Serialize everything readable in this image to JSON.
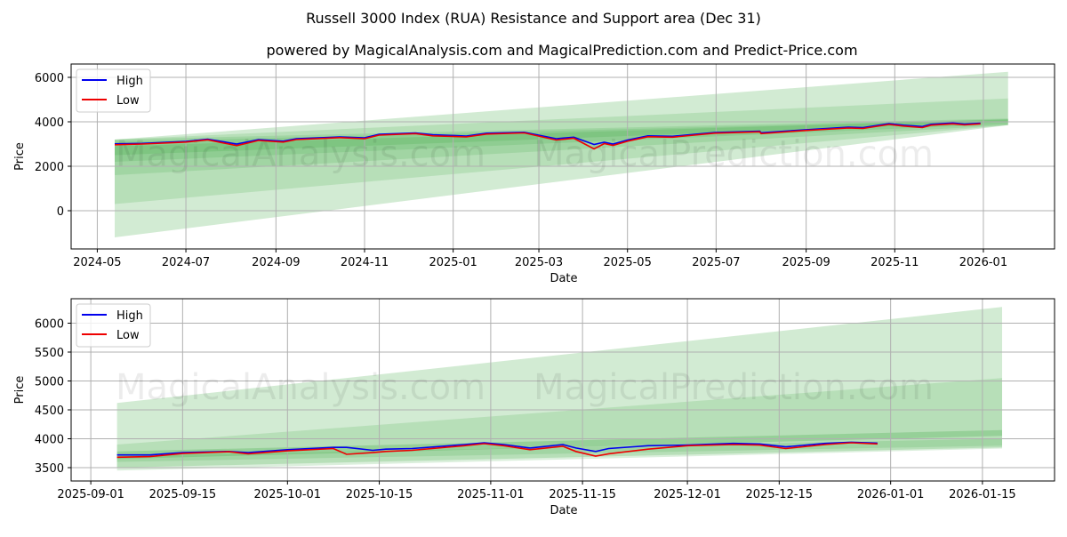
{
  "title": "Russell 3000 Index (RUA) Resistance and Support area (Dec 31)",
  "subtitle": "powered by MagicalAnalysis.com and MagicalPrediction.com and Predict-Price.com",
  "watermarks": [
    "MagicalAnalysis.com",
    "MagicalPrediction.com"
  ],
  "colors": {
    "high": "#0000ee",
    "low": "#ee0000",
    "band": "#4caf50",
    "grid": "#b0b0b0"
  },
  "chart_data": [
    {
      "type": "line",
      "title": "",
      "xlabel": "Date",
      "ylabel": "Price",
      "xlim": [
        "2024-04-13",
        "2026-02-19"
      ],
      "ylim": [
        -1720,
        6600
      ],
      "grid": true,
      "legend": {
        "placement": "top-left",
        "entries": [
          "High",
          "Low"
        ]
      },
      "xticks": [
        "2024-05",
        "2024-07",
        "2024-09",
        "2024-11",
        "2025-01",
        "2025-03",
        "2025-05",
        "2025-07",
        "2025-09",
        "2025-11",
        "2026-01"
      ],
      "yticks": [
        0,
        2000,
        4000,
        6000
      ],
      "bands": [
        {
          "x": [
            "2024-05-13",
            "2026-01-18"
          ],
          "start": [
            -1200,
            3200
          ],
          "end": [
            3850,
            6250
          ],
          "opacity": 0.25
        },
        {
          "x": [
            "2024-05-13",
            "2026-01-18"
          ],
          "start": [
            300,
            3200
          ],
          "end": [
            3850,
            5050
          ],
          "opacity": 0.2
        },
        {
          "x": [
            "2024-05-13",
            "2026-01-18"
          ],
          "start": [
            1600,
            3200
          ],
          "end": [
            3850,
            4150
          ],
          "opacity": 0.2
        },
        {
          "x": [
            "2024-05-13",
            "2026-01-18"
          ],
          "start": [
            2200,
            3100
          ],
          "end": [
            3900,
            4100
          ],
          "opacity": 0.2
        },
        {
          "x": [
            "2024-05-13",
            "2026-01-18"
          ],
          "start": [
            2500,
            2900
          ],
          "end": [
            4000,
            4120
          ],
          "opacity": 0.25
        }
      ],
      "x": [
        "2024-05-13",
        "2024-06-01",
        "2024-07-01",
        "2024-07-16",
        "2024-08-05",
        "2024-08-20",
        "2024-09-06",
        "2024-09-15",
        "2024-10-15",
        "2024-11-01",
        "2024-11-11",
        "2024-12-06",
        "2024-12-18",
        "2025-01-10",
        "2025-01-24",
        "2025-02-19",
        "2025-03-13",
        "2025-03-25",
        "2025-04-08",
        "2025-04-15",
        "2025-04-21",
        "2025-05-01",
        "2025-05-15",
        "2025-06-01",
        "2025-06-30",
        "2025-07-31",
        "2025-08-01",
        "2025-08-31",
        "2025-09-30",
        "2025-10-10",
        "2025-10-28",
        "2025-11-07",
        "2025-11-20",
        "2025-11-26",
        "2025-12-11",
        "2025-12-19",
        "2025-12-30"
      ],
      "series": [
        {
          "name": "High",
          "values": [
            3010,
            3030,
            3120,
            3220,
            3000,
            3200,
            3130,
            3240,
            3320,
            3280,
            3440,
            3500,
            3420,
            3360,
            3490,
            3530,
            3240,
            3310,
            2980,
            3080,
            3000,
            3180,
            3370,
            3350,
            3520,
            3580,
            3510,
            3640,
            3760,
            3740,
            3920,
            3850,
            3790,
            3890,
            3950,
            3900,
            3940
          ]
        },
        {
          "name": "Low",
          "values": [
            2970,
            3000,
            3090,
            3190,
            2930,
            3160,
            3090,
            3200,
            3290,
            3240,
            3400,
            3470,
            3370,
            3320,
            3450,
            3500,
            3180,
            3260,
            2780,
            3020,
            2940,
            3130,
            3330,
            3310,
            3490,
            3550,
            3470,
            3610,
            3720,
            3700,
            3880,
            3810,
            3740,
            3850,
            3910,
            3860,
            3910
          ]
        }
      ]
    },
    {
      "type": "line",
      "title": "",
      "xlabel": "Date",
      "ylabel": "Price",
      "xlim": [
        "2025-08-29",
        "2026-01-26"
      ],
      "ylim": [
        3269,
        6423
      ],
      "grid": true,
      "legend": {
        "placement": "top-left",
        "entries": [
          "High",
          "Low"
        ]
      },
      "xticks": [
        "2025-09-01",
        "2025-09-15",
        "2025-10-01",
        "2025-10-15",
        "2025-11-01",
        "2025-11-15",
        "2025-12-01",
        "2025-12-15",
        "2026-01-01",
        "2026-01-15"
      ],
      "yticks": [
        3500,
        4000,
        4500,
        5000,
        5500,
        6000
      ],
      "bands": [
        {
          "x": [
            "2025-09-05",
            "2026-01-18"
          ],
          "start": [
            3500,
            4620
          ],
          "end": [
            3850,
            6280
          ],
          "opacity": 0.25
        },
        {
          "x": [
            "2025-09-05",
            "2026-01-18"
          ],
          "start": [
            3600,
            3900
          ],
          "end": [
            3880,
            5050
          ],
          "opacity": 0.2
        },
        {
          "x": [
            "2025-09-05",
            "2026-01-18"
          ],
          "start": [
            3450,
            3700
          ],
          "end": [
            3830,
            4000
          ],
          "opacity": 0.2
        },
        {
          "x": [
            "2025-09-05",
            "2026-01-18"
          ],
          "start": [
            3650,
            3780
          ],
          "end": [
            4050,
            4150
          ],
          "opacity": 0.3
        }
      ],
      "x": [
        "2025-09-05",
        "2025-09-10",
        "2025-09-15",
        "2025-09-22",
        "2025-09-25",
        "2025-10-01",
        "2025-10-08",
        "2025-10-10",
        "2025-10-14",
        "2025-10-16",
        "2025-10-20",
        "2025-10-28",
        "2025-10-31",
        "2025-11-03",
        "2025-11-07",
        "2025-11-12",
        "2025-11-14",
        "2025-11-17",
        "2025-11-19",
        "2025-11-25",
        "2025-12-01",
        "2025-12-08",
        "2025-12-12",
        "2025-12-16",
        "2025-12-22",
        "2025-12-26",
        "2025-12-30"
      ],
      "series": [
        {
          "name": "High",
          "values": [
            3720,
            3720,
            3760,
            3780,
            3760,
            3810,
            3850,
            3850,
            3800,
            3820,
            3830,
            3900,
            3930,
            3900,
            3840,
            3900,
            3840,
            3780,
            3830,
            3880,
            3890,
            3920,
            3910,
            3860,
            3920,
            3940,
            3925
          ]
        },
        {
          "name": "Low",
          "values": [
            3680,
            3690,
            3745,
            3775,
            3740,
            3790,
            3830,
            3730,
            3760,
            3780,
            3800,
            3880,
            3915,
            3880,
            3810,
            3870,
            3780,
            3700,
            3740,
            3820,
            3880,
            3900,
            3890,
            3830,
            3900,
            3930,
            3910
          ]
        }
      ]
    }
  ]
}
